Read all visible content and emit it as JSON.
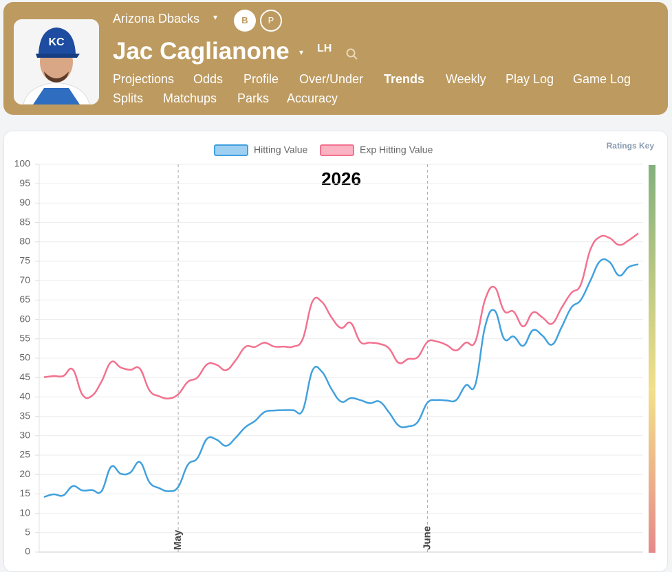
{
  "header": {
    "team": "Arizona Dbacks",
    "badges": [
      "B",
      "P"
    ],
    "name": "Jac Caglianone",
    "hand": "LH",
    "nav": [
      "Projections",
      "Odds",
      "Profile",
      "Over/Under",
      "Trends",
      "Weekly",
      "Play Log",
      "Game Log",
      "Splits",
      "Matchups",
      "Parks",
      "Accuracy"
    ]
  },
  "ratings_key": "Ratings Key",
  "chart_data": {
    "type": "line",
    "title": "2026",
    "categories": [
      null,
      null,
      null,
      null,
      null,
      null,
      null,
      null,
      null,
      null,
      null,
      null,
      null,
      null,
      "May",
      null,
      null,
      null,
      null,
      null,
      null,
      null,
      null,
      null,
      null,
      null,
      null,
      null,
      null,
      null,
      null,
      null,
      null,
      null,
      null,
      null,
      null,
      null,
      null,
      null,
      "June",
      null,
      null,
      null,
      null,
      null,
      null,
      null,
      null,
      null,
      null,
      null,
      null,
      null,
      null,
      null,
      null,
      null,
      null,
      null,
      null,
      null,
      null
    ],
    "series": [
      {
        "name": "Hitting Value",
        "color": "#41a1de",
        "fill": "#9fd0f2",
        "values": [
          14.2,
          14.9,
          14.6,
          17,
          15.9,
          16,
          15.7,
          22,
          20.2,
          20.5,
          23.2,
          18,
          16.5,
          15.7,
          16.8,
          22.5,
          24.2,
          29.2,
          29,
          27.4,
          29.5,
          32.2,
          33.8,
          36.1,
          36.5,
          36.6,
          36.6,
          36.6,
          46.8,
          46.5,
          42,
          38.8,
          39.7,
          39.2,
          38.4,
          38.8,
          36,
          32.6,
          32.4,
          33.6,
          38.5,
          39.2,
          39.1,
          39.2,
          43,
          43.2,
          58,
          62.3,
          55,
          55.6,
          53.2,
          57.2,
          55.8,
          53.5,
          58,
          63,
          65,
          70,
          75,
          74.8,
          71.3,
          73.5,
          74.2
        ]
      },
      {
        "name": "Exp Hitting Value",
        "color": "#f2728f",
        "fill": "#fbb3c3",
        "values": [
          45.1,
          45.4,
          45.4,
          47.1,
          40.6,
          40.3,
          44,
          49,
          47.6,
          47,
          47.3,
          41.7,
          40.2,
          39.6,
          40.7,
          43.9,
          45,
          48.4,
          48.3,
          46.9,
          49.5,
          52.9,
          52.9,
          54,
          53,
          53,
          53,
          55,
          64.6,
          64.5,
          60.5,
          57.8,
          59.1,
          54.2,
          54,
          53.7,
          52.5,
          48.8,
          49.8,
          50.3,
          54.2,
          54.3,
          53.4,
          52,
          54,
          54.3,
          65,
          68.3,
          62.2,
          62,
          58.2,
          61.8,
          60.5,
          58.9,
          63,
          66.8,
          69,
          78,
          81.3,
          81,
          79.2,
          80.4,
          82.2
        ]
      }
    ],
    "ylim": [
      0,
      100
    ],
    "yticks": [
      0,
      5,
      10,
      15,
      20,
      25,
      30,
      35,
      40,
      45,
      50,
      55,
      60,
      65,
      70,
      75,
      80,
      85,
      90,
      95,
      100
    ],
    "grid": true
  }
}
